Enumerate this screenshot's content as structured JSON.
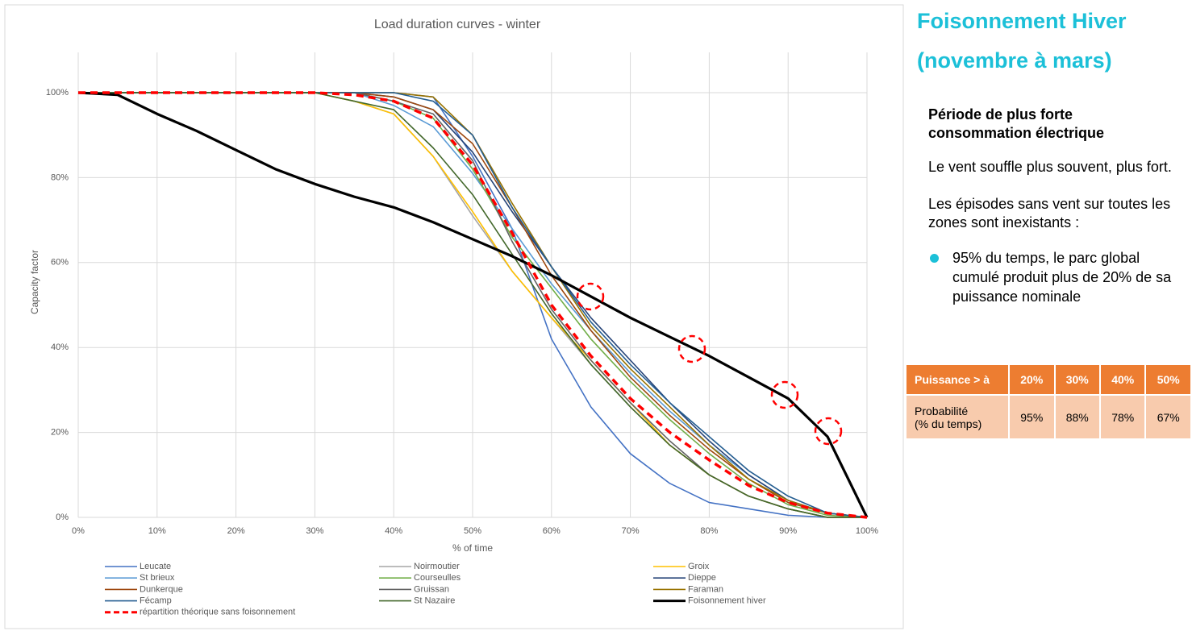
{
  "chart_data": {
    "type": "line",
    "title": "Load duration curves - winter",
    "x_label": "% of time",
    "y_label": "Capacity factor",
    "x": [
      0,
      5,
      10,
      15,
      20,
      25,
      30,
      35,
      40,
      45,
      50,
      55,
      60,
      65,
      70,
      75,
      80,
      85,
      90,
      95,
      100
    ],
    "xlim": [
      0,
      100
    ],
    "xticks": [
      {
        "value": 0,
        "label": "0%"
      },
      {
        "value": 10,
        "label": "10%"
      },
      {
        "value": 20,
        "label": "20%"
      },
      {
        "value": 30,
        "label": "30%"
      },
      {
        "value": 40,
        "label": "40%"
      },
      {
        "value": 50,
        "label": "50%"
      },
      {
        "value": 60,
        "label": "60%"
      },
      {
        "value": 70,
        "label": "70%"
      },
      {
        "value": 80,
        "label": "80%"
      },
      {
        "value": 90,
        "label": "90%"
      },
      {
        "value": 100,
        "label": "100%"
      }
    ],
    "ylim": [
      0,
      100
    ],
    "yticks": [
      {
        "value": 0,
        "label": "0%"
      },
      {
        "value": 20,
        "label": "20%"
      },
      {
        "value": 40,
        "label": "40%"
      },
      {
        "value": 60,
        "label": "60%"
      },
      {
        "value": 80,
        "label": "80%"
      },
      {
        "value": 100,
        "label": "100%"
      }
    ],
    "grid": true,
    "series": [
      {
        "name": "Leucate",
        "color": "#4472c4",
        "values": [
          100,
          100,
          100,
          100,
          100,
          100,
          100,
          100,
          100,
          99,
          85,
          68,
          42,
          26,
          15,
          8,
          3.5,
          2,
          0.5,
          0,
          0
        ]
      },
      {
        "name": "Noirmoutier",
        "color": "#a5a5a5",
        "values": [
          100,
          100,
          100,
          100,
          100,
          100,
          100,
          98,
          95,
          85,
          71,
          58,
          47,
          36,
          26,
          17,
          10,
          5,
          2,
          0,
          0
        ]
      },
      {
        "name": "Groix",
        "color": "#ffc000",
        "values": [
          100,
          100,
          100,
          100,
          100,
          100,
          100,
          98,
          95,
          85,
          72,
          58,
          47,
          37,
          27,
          17,
          10,
          5,
          2,
          0,
          0
        ]
      },
      {
        "name": "St brieux",
        "color": "#5b9bd5",
        "values": [
          100,
          100,
          100,
          100,
          100,
          100,
          100,
          100,
          97,
          92,
          81,
          68,
          55,
          44,
          34,
          25,
          17,
          10,
          4,
          1,
          0
        ]
      },
      {
        "name": "Courseulles",
        "color": "#70ad47",
        "values": [
          100,
          100,
          100,
          100,
          100,
          100,
          100,
          100,
          98,
          94,
          82,
          66,
          54,
          42,
          32,
          23,
          15,
          8,
          3,
          0.5,
          0
        ]
      },
      {
        "name": "Dieppe",
        "color": "#264478",
        "values": [
          100,
          100,
          100,
          100,
          100,
          100,
          100,
          100,
          99,
          96,
          86,
          72,
          59,
          47,
          37,
          27,
          18,
          10,
          4,
          1,
          0
        ]
      },
      {
        "name": "Dunkerque",
        "color": "#9e480e",
        "values": [
          100,
          100,
          100,
          100,
          100,
          100,
          100,
          100,
          99,
          96,
          88,
          73,
          57,
          44,
          33,
          24,
          16,
          9,
          3.5,
          1,
          0
        ]
      },
      {
        "name": "Gruissan",
        "color": "#636363",
        "values": [
          100,
          100,
          100,
          100,
          100,
          100,
          100,
          100,
          98,
          95,
          84,
          65,
          49,
          37,
          27,
          18,
          10,
          5,
          2,
          0,
          0
        ]
      },
      {
        "name": "Faraman",
        "color": "#997300",
        "values": [
          100,
          100,
          100,
          100,
          100,
          100,
          100,
          100,
          100,
          99,
          90,
          74,
          59,
          45,
          35,
          26,
          17,
          9,
          4,
          1,
          0
        ]
      },
      {
        "name": "Fécamp",
        "color": "#255e91",
        "values": [
          100,
          100,
          100,
          100,
          100,
          100,
          100,
          100,
          100,
          98,
          90,
          73,
          59,
          46,
          36,
          27,
          19,
          11,
          5,
          1,
          0
        ]
      },
      {
        "name": "St Nazaire",
        "color": "#43682b",
        "values": [
          100,
          100,
          100,
          100,
          100,
          100,
          100,
          98,
          96,
          87,
          76,
          62,
          48,
          36,
          26,
          17,
          10,
          5,
          2,
          0,
          0
        ]
      },
      {
        "name": "Foisonnement hiver",
        "color": "#000000",
        "values": [
          100,
          99.5,
          95,
          91,
          86.5,
          82,
          78.5,
          75.5,
          73,
          69.5,
          65.5,
          61.5,
          57,
          52,
          47,
          42.5,
          38,
          33,
          28,
          19,
          0
        ]
      },
      {
        "name": "répartition théorique sans foisonnement",
        "color": "#ff0000",
        "values": [
          100,
          100,
          100,
          100,
          100,
          100,
          100,
          99.5,
          98,
          94,
          83,
          67,
          50,
          38,
          28,
          20,
          13.5,
          7.5,
          3.5,
          1,
          0
        ]
      }
    ]
  },
  "panel": {
    "title_line1": "Foisonnement Hiver",
    "title_line2": "(novembre à mars)",
    "heading": "Période de plus forte consommation électrique",
    "paragraph1": "Le vent souffle plus souvent, plus fort.",
    "paragraph2": "Les épisodes sans vent sur toutes les zones sont inexistants :",
    "bullet": "95% du temps, le parc global cumulé produit plus de 20% de sa puissance nominale",
    "table": {
      "header": [
        "Puissance > à",
        "20%",
        "30%",
        "40%",
        "50%"
      ],
      "rows": [
        [
          "Probabilité\n(% du temps)",
          "95%",
          "88%",
          "78%",
          "67%"
        ]
      ]
    }
  }
}
